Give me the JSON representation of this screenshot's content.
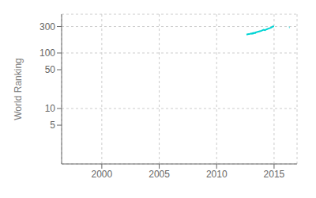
{
  "chart_data": {
    "type": "line",
    "ylabel": "World Ranking",
    "color": "#00d4d4",
    "log": "y",
    "grid": true,
    "xlim": [
      1996.5,
      2017.0
    ],
    "xticks": [
      2000,
      2005,
      2010,
      2015
    ],
    "ylim": [
      1,
      500
    ],
    "yticks": [
      5,
      10,
      50,
      100,
      300
    ],
    "series": [
      {
        "x": [
          2012.6,
          2012.7,
          2012.8,
          2012.9,
          2013.0,
          2013.05,
          2013.1,
          2013.15,
          2013.2,
          2013.25,
          2013.3,
          2013.35,
          2013.4,
          2013.5,
          2013.6,
          2013.7,
          2013.8,
          2013.9,
          2014.0,
          2014.1,
          2014.2,
          2014.3,
          2014.4,
          2014.5,
          2014.6,
          2014.7,
          2014.8,
          2014.85,
          2014.9,
          2014.95,
          2015.0
        ],
        "values": [
          215,
          218,
          220,
          222,
          225,
          223,
          227,
          224,
          230,
          228,
          232,
          229,
          235,
          238,
          242,
          245,
          248,
          252,
          258,
          262,
          258,
          265,
          270,
          275,
          280,
          285,
          292,
          298,
          300,
          302,
          303
        ]
      },
      {
        "x": [
          2016.3,
          2016.35
        ],
        "values": [
          290,
          292
        ]
      }
    ]
  }
}
